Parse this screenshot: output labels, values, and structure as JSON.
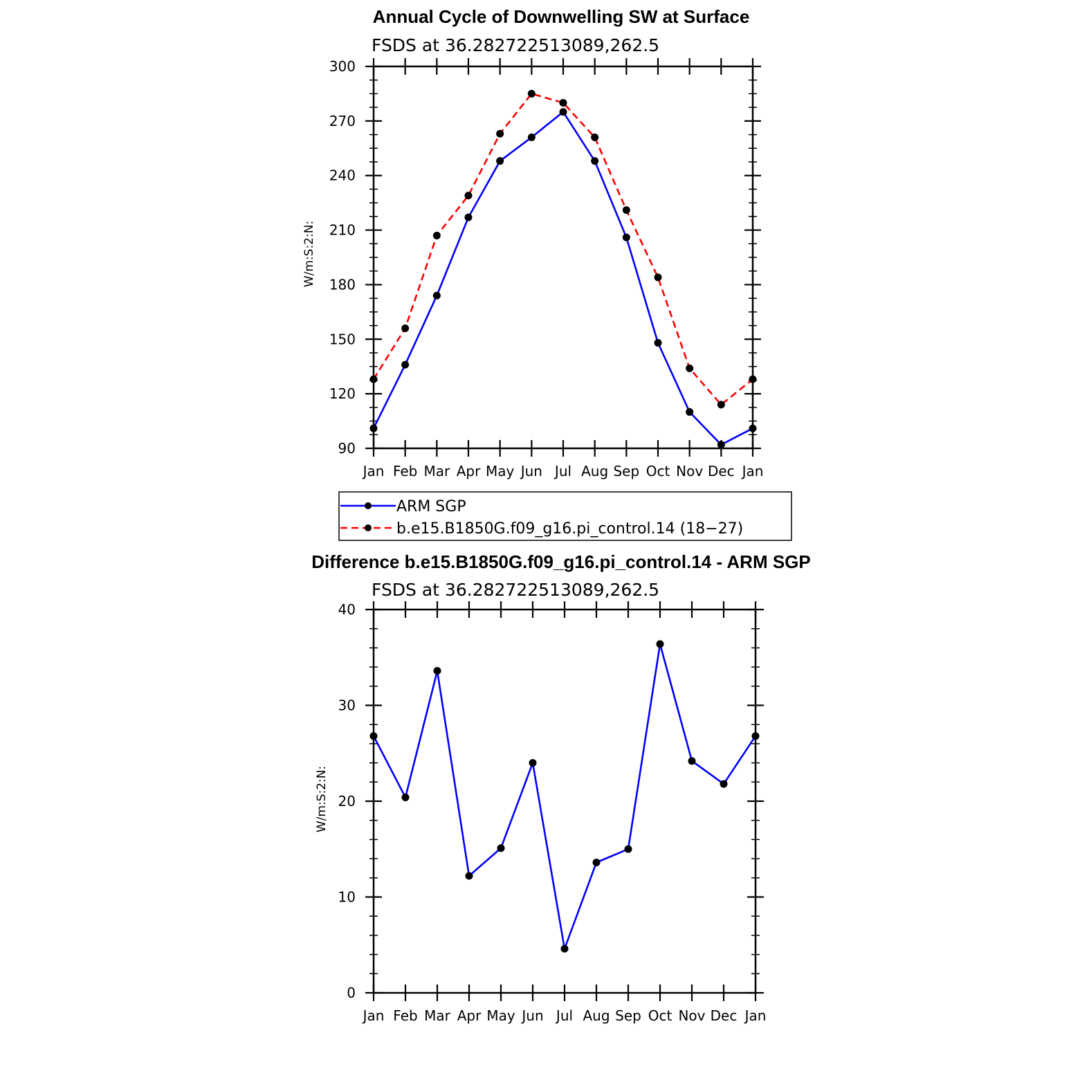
{
  "colors": {
    "blue": "#0000ff",
    "red": "#ff0000",
    "marker": "#000000",
    "axis": "#000000"
  },
  "chart_data": [
    {
      "type": "line",
      "title": "Annual Cycle of Downwelling SW at Surface",
      "subtitle": "FSDS at 36.282722513089,262.5",
      "ylabel": "W/m:S:2:N:",
      "xlabel": "",
      "categories": [
        "Jan",
        "Feb",
        "Mar",
        "Apr",
        "May",
        "Jun",
        "Jul",
        "Aug",
        "Sep",
        "Oct",
        "Nov",
        "Dec",
        "Jan"
      ],
      "ylim": [
        90,
        300
      ],
      "yticks": [
        90,
        120,
        150,
        180,
        210,
        240,
        270,
        300
      ],
      "grid": false,
      "legend_position": "bottom",
      "series": [
        {
          "name": "ARM SGP",
          "color": "#0000ff",
          "dash": "solid",
          "values": [
            101,
            136,
            174,
            217,
            248,
            261,
            275,
            248,
            206,
            148,
            110,
            92,
            101
          ]
        },
        {
          "name": "b.e15.B1850G.f09_g16.pi_control.14 (18−27)",
          "color": "#ff0000",
          "dash": "dashed",
          "values": [
            128,
            156,
            207,
            229,
            263,
            285,
            280,
            261,
            221,
            184,
            134,
            114,
            128
          ]
        }
      ]
    },
    {
      "type": "line",
      "title": "Difference b.e15.B1850G.f09_g16.pi_control.14 - ARM SGP",
      "subtitle": "FSDS at 36.282722513089,262.5",
      "ylabel": "W/m:S:2:N:",
      "xlabel": "",
      "categories": [
        "Jan",
        "Feb",
        "Mar",
        "Apr",
        "May",
        "Jun",
        "Jul",
        "Aug",
        "Sep",
        "Oct",
        "Nov",
        "Dec",
        "Jan"
      ],
      "ylim": [
        0,
        40
      ],
      "yticks": [
        0,
        10,
        20,
        30,
        40
      ],
      "grid": false,
      "series": [
        {
          "color": "#0000ff",
          "dash": "solid",
          "values": [
            26.8,
            20.4,
            33.6,
            12.2,
            15.1,
            24.0,
            4.6,
            13.6,
            15.0,
            36.4,
            24.2,
            21.8,
            26.8
          ]
        }
      ]
    }
  ]
}
